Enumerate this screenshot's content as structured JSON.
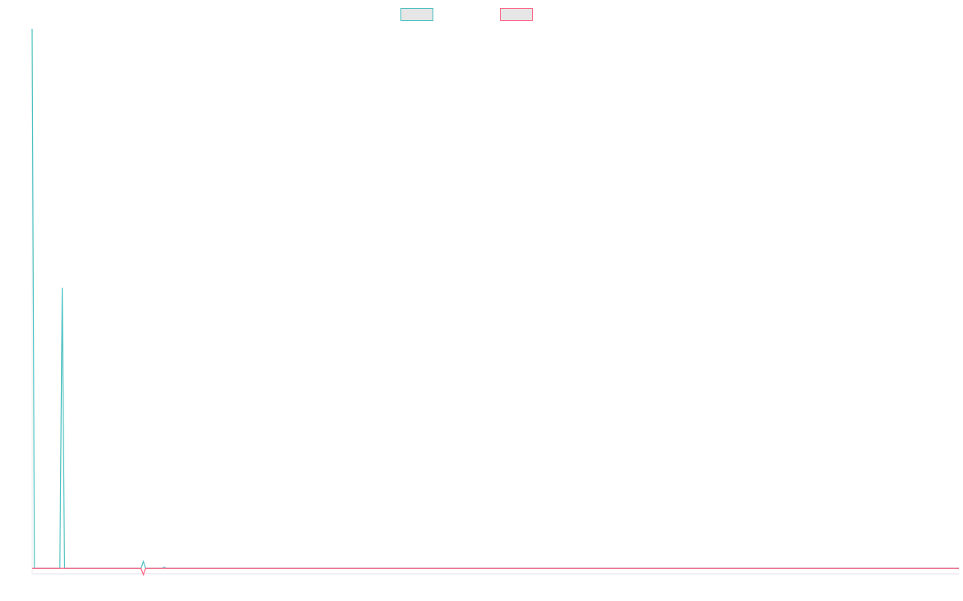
{
  "chart_data": {
    "type": "line",
    "x": [
      0,
      1,
      12,
      13,
      14,
      47,
      48,
      49,
      56,
      57,
      58,
      400
    ],
    "xlim": [
      0,
      400
    ],
    "ylim": [
      -1,
      100
    ],
    "legend": "top",
    "series": [
      {
        "color": "#4bc0c0",
        "values": [
          100,
          0,
          0,
          52,
          0,
          0,
          1.3,
          0,
          0,
          0.2,
          0,
          0
        ]
      },
      {
        "color": "#ff6384",
        "values": [
          0,
          0,
          0,
          0,
          0,
          0,
          -1.2,
          0,
          0,
          0,
          0,
          0
        ]
      }
    ]
  }
}
